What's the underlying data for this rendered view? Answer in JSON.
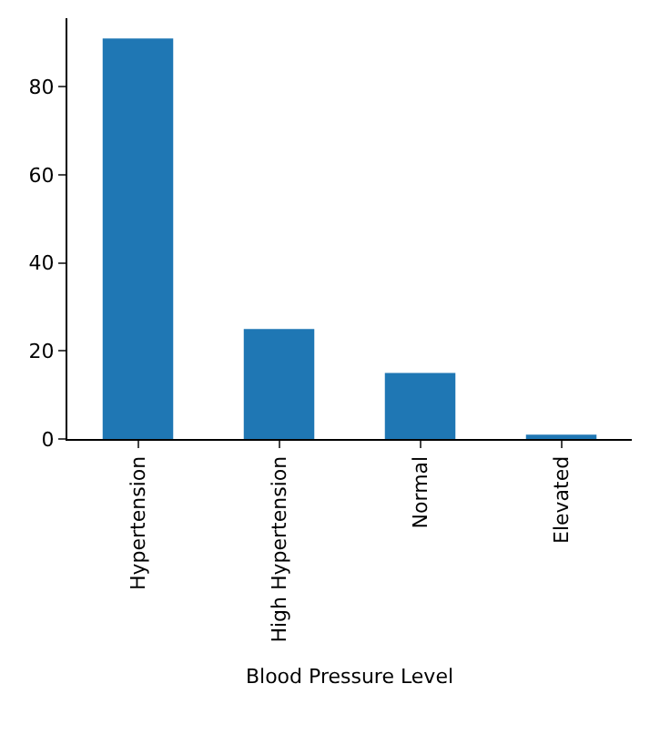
{
  "chart_data": {
    "type": "bar",
    "xlabel": "Blood Pressure Level",
    "categories": [
      "Hypertension",
      "High Hypertension",
      "Normal",
      "Elevated"
    ],
    "values": [
      91,
      25,
      15,
      1
    ],
    "color": "#1f77b4",
    "ylim": [
      0,
      95.6
    ],
    "yticks": [
      0,
      20,
      40,
      60,
      80
    ],
    "grid": false,
    "legend": false
  }
}
